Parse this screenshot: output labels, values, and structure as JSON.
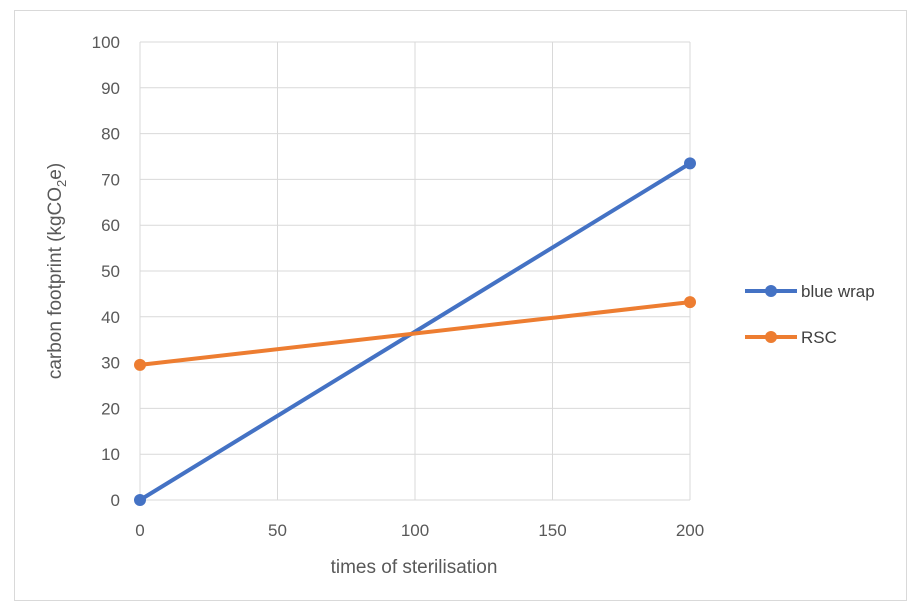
{
  "chart_data": {
    "type": "line",
    "title": "",
    "xlabel": "times of sterilisation",
    "ylabel": {
      "main": "carbon footprint (kgCO",
      "subscript": "2",
      "suffix": "e)"
    },
    "x": [
      0,
      200
    ],
    "xlim": [
      0,
      200
    ],
    "ylim": [
      0,
      100
    ],
    "xticks": [
      "0",
      "50",
      "100",
      "150",
      "200"
    ],
    "yticks": [
      "0",
      "10",
      "20",
      "30",
      "40",
      "50",
      "60",
      "70",
      "80",
      "90",
      "100"
    ],
    "grid": true,
    "legend_position": "right",
    "series": [
      {
        "name": "blue wrap",
        "color": "#4472c4",
        "values": [
          0,
          73.5
        ]
      },
      {
        "name": "RSC",
        "color": "#ed7d31",
        "values": [
          29.5,
          43.2
        ]
      }
    ]
  }
}
